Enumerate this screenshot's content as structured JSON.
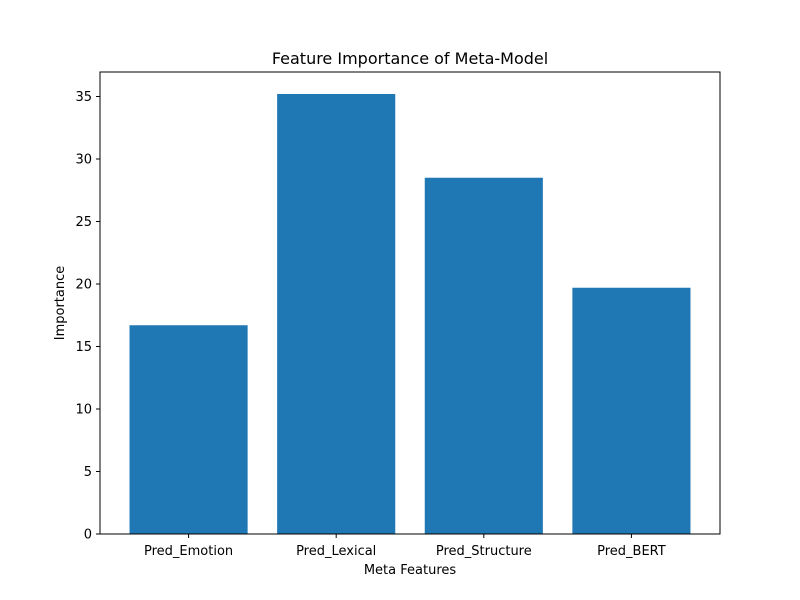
{
  "chart_data": {
    "type": "bar",
    "title": "Feature Importance of Meta-Model",
    "xlabel": "Meta Features",
    "ylabel": "Importance",
    "categories": [
      "Pred_Emotion",
      "Pred_Lexical",
      "Pred_Structure",
      "Pred_BERT"
    ],
    "values": [
      16.7,
      35.2,
      28.5,
      19.7
    ],
    "ylim": [
      0,
      36.96
    ],
    "yticks": [
      0,
      5,
      10,
      15,
      20,
      25,
      30,
      35
    ],
    "grid": false,
    "bar_color": "#1f77b4"
  }
}
